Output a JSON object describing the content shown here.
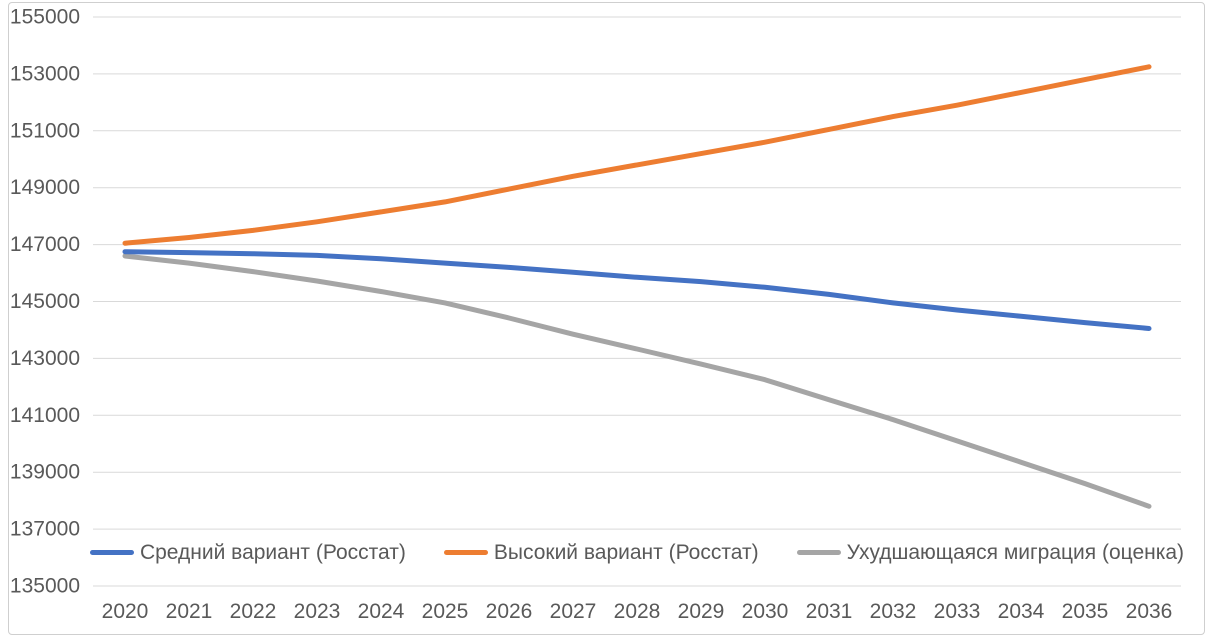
{
  "chart_data": {
    "type": "line",
    "title": "",
    "categories": [
      "2020",
      "2021",
      "2022",
      "2023",
      "2024",
      "2025",
      "2026",
      "2027",
      "2028",
      "2029",
      "2030",
      "2031",
      "2032",
      "2033",
      "2034",
      "2035",
      "2036"
    ],
    "series": [
      {
        "name": "Средний вариант (Росстат)",
        "color": "#4472C4",
        "values": [
          146750,
          146720,
          146680,
          146620,
          146500,
          146350,
          146200,
          146030,
          145850,
          145700,
          145500,
          145250,
          144950,
          144700,
          144480,
          144260,
          144050
        ]
      },
      {
        "name": "Высокий вариант (Росстат)",
        "color": "#ED7D31",
        "values": [
          147050,
          147250,
          147500,
          147800,
          148150,
          148500,
          148950,
          149400,
          149800,
          150200,
          150600,
          151050,
          151500,
          151900,
          152350,
          152800,
          153250
        ]
      },
      {
        "name": "Ухудшающаяся миграция (оценка)",
        "color": "#A5A5A5",
        "values": [
          146600,
          146350,
          146050,
          145720,
          145350,
          144950,
          144420,
          143850,
          143330,
          142800,
          142250,
          141550,
          140850,
          140100,
          139350,
          138600,
          137800
        ]
      }
    ],
    "y_axis": {
      "min": 135000,
      "max": 155000,
      "step": 2000,
      "tick_labels": [
        "155000",
        "153000",
        "151000",
        "149000",
        "147000",
        "145000",
        "143000",
        "141000",
        "139000",
        "137000",
        "135000"
      ]
    },
    "x_axis": {
      "tick_labels": [
        "2020",
        "2021",
        "2022",
        "2023",
        "2024",
        "2025",
        "2026",
        "2027",
        "2028",
        "2029",
        "2030",
        "2031",
        "2032",
        "2033",
        "2034",
        "2035",
        "2036"
      ]
    },
    "grid": true,
    "gridline_color": "#D9D9D9",
    "axis_text_color": "#595959",
    "legend_position": "bottom-inside",
    "line_width": 5
  }
}
